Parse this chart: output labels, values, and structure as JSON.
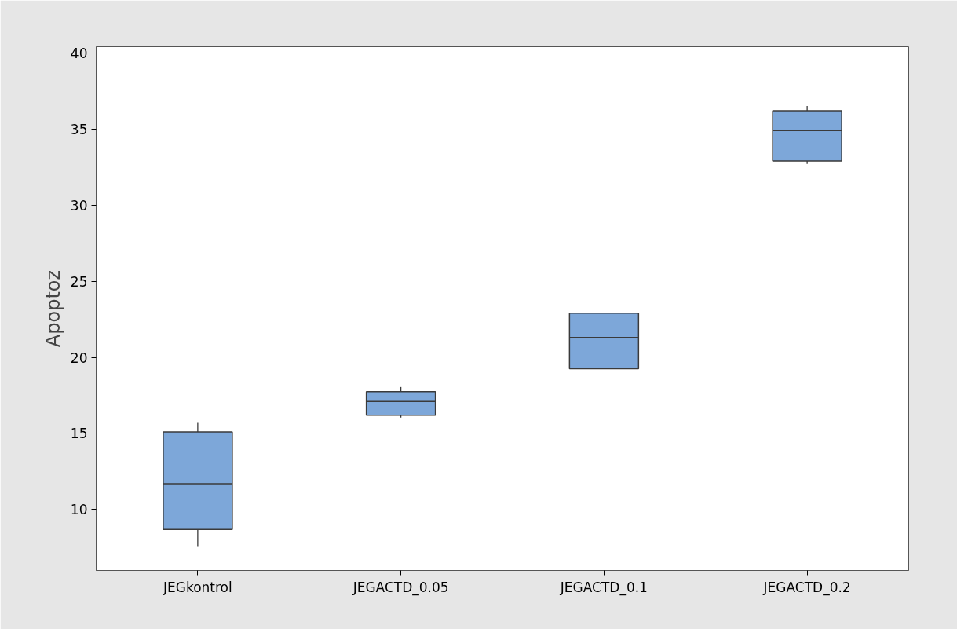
{
  "chart_data": {
    "type": "box",
    "ylabel": "Apoptoz",
    "categories": [
      "JEGkontrol",
      "JEGACTD_0.05",
      "JEGACTD_0.1",
      "JEGACTD_0.2"
    ],
    "boxes": [
      {
        "low": 7.6,
        "q1": 8.7,
        "median": 11.7,
        "q3": 15.1,
        "high": 15.7
      },
      {
        "low": 16.05,
        "q1": 16.2,
        "median": 17.1,
        "q3": 17.75,
        "high": 18.05
      },
      {
        "low": 19.25,
        "q1": 19.25,
        "median": 21.3,
        "q3": 22.9,
        "high": 22.9
      },
      {
        "low": 32.7,
        "q1": 32.9,
        "median": 34.9,
        "q3": 36.2,
        "high": 36.5
      }
    ],
    "color": "#7da7d9",
    "ylim": [
      6,
      40.4
    ],
    "yticks": [
      10,
      15,
      20,
      25,
      30,
      35,
      40
    ],
    "grid": false
  }
}
